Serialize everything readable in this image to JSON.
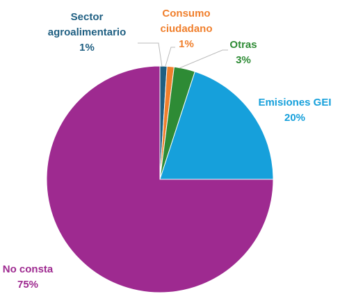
{
  "chart_data": {
    "type": "pie",
    "categories": [
      "Sector agroalimentario",
      "Consumo ciudadano",
      "Otras",
      "Emisiones GEI",
      "No consta"
    ],
    "values": [
      1,
      1,
      3,
      20,
      75
    ],
    "value_labels": [
      "1%",
      "1%",
      "3%",
      "20%",
      "75%"
    ],
    "colors": [
      "#1f5f82",
      "#f07f2c",
      "#2e8b35",
      "#16a0db",
      "#9e2a90"
    ]
  }
}
